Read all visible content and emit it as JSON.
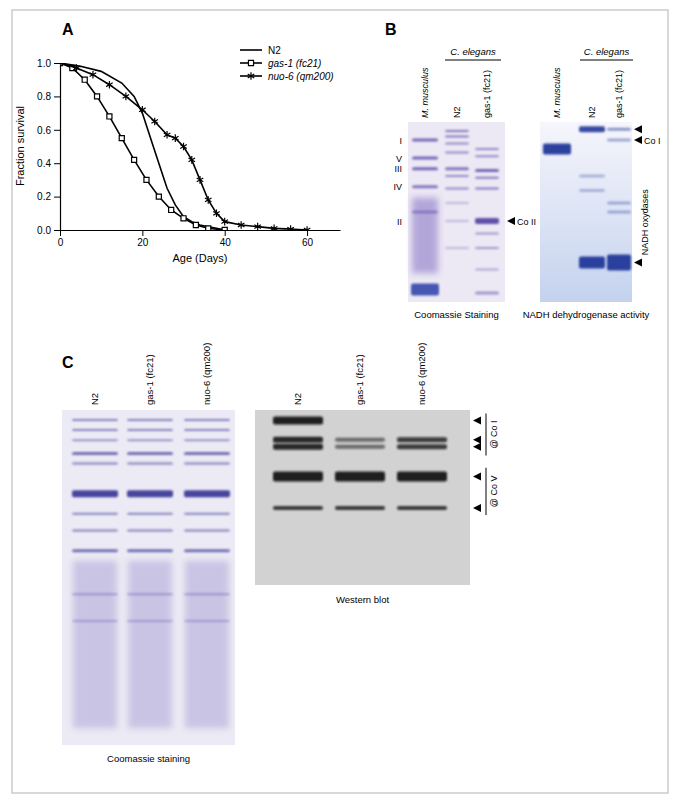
{
  "chart_data": {
    "type": "line",
    "x_label": "Age (Days)",
    "y_label": "Fraction survival",
    "xlim": [
      0,
      68
    ],
    "ylim": [
      0,
      1
    ],
    "xticks": [
      0,
      20,
      40,
      60
    ],
    "yticks": [
      {
        "value": 0,
        "label": "0.0"
      },
      0.2,
      0.4,
      0.6,
      0.8,
      {
        "value": 1,
        "label": "1.0"
      }
    ],
    "legend": "upper right",
    "series": [
      {
        "name": "N2",
        "color": "#000000",
        "marker": "none",
        "line_style": "solid",
        "x": [
          0,
          5,
          10,
          15,
          18,
          20,
          22,
          24,
          26,
          28,
          30,
          32,
          34,
          36,
          38,
          40
        ],
        "values": [
          1,
          0.98,
          0.95,
          0.88,
          0.8,
          0.7,
          0.55,
          0.4,
          0.25,
          0.15,
          0.08,
          0.05,
          0.03,
          0.02,
          0.01,
          0
        ]
      },
      {
        "name": "gas-1 (fc21)",
        "color": "#000000",
        "marker": "square",
        "line_style": "solid",
        "x": [
          0,
          3,
          6,
          9,
          12,
          15,
          18,
          21,
          24,
          27,
          30,
          33,
          36,
          40
        ],
        "values": [
          1,
          0.97,
          0.9,
          0.8,
          0.68,
          0.55,
          0.42,
          0.3,
          0.2,
          0.12,
          0.07,
          0.03,
          0.01,
          0
        ]
      },
      {
        "name": "nuo-6 (qm200)",
        "color": "#000000",
        "marker": "asterisk",
        "line_style": "solid",
        "x": [
          0,
          4,
          8,
          12,
          16,
          20,
          23,
          26,
          28,
          30,
          32,
          34,
          36,
          38,
          40,
          44,
          48,
          52,
          56,
          60
        ],
        "values": [
          1,
          0.97,
          0.93,
          0.87,
          0.8,
          0.72,
          0.65,
          0.57,
          0.55,
          0.5,
          0.42,
          0.3,
          0.18,
          0.1,
          0.05,
          0.03,
          0.02,
          0.01,
          0.005,
          0
        ]
      }
    ]
  },
  "figure": {
    "panel_labels": [
      "A",
      "B",
      "C"
    ],
    "panel_b": {
      "coomassie": {
        "group": "C. elegans",
        "lanes": [
          "M. musculus",
          "N2",
          "gas-1 (fc21)"
        ],
        "complexes": [
          "I",
          "V",
          "III",
          "IV",
          "II"
        ],
        "band_labels": [
          "Co II"
        ],
        "caption": "Coomassie Staining"
      },
      "activity": {
        "group": "C. elegans",
        "lanes": [
          "M. musculus",
          "N2",
          "gas-1 (fc21)"
        ],
        "band_labels": [
          "Co I",
          "NADH oxydases"
        ],
        "caption": "NADH dehydrogenase activity"
      }
    },
    "panel_c": {
      "coomassie": {
        "lanes": [
          "N2",
          "gas-1 (fc21)",
          "nuo-6 (qm200)"
        ],
        "caption": "Coomassie staining"
      },
      "western": {
        "lanes": [
          "N2",
          "gas-1 (fc21)",
          "nuo-6 (qm200)"
        ],
        "band_labels": [
          "@ Co I",
          "@ Co V"
        ],
        "caption": "Western blot"
      }
    }
  }
}
